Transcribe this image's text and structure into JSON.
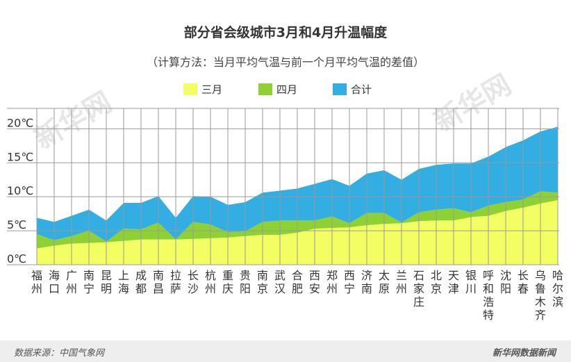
{
  "chart_data": {
    "type": "area",
    "title": "部分省会级城市3月和4月升温幅度",
    "subtitle": "（计算方法：当月平均气温与前一个月平均气温的差值）",
    "categories": [
      "福州",
      "海口",
      "广州",
      "南宁",
      "昆明",
      "上海",
      "成都",
      "南昌",
      "拉萨",
      "长沙",
      "杭州",
      "重庆",
      "贵阳",
      "南京",
      "武汉",
      "合肥",
      "西安",
      "郑州",
      "西宁",
      "济南",
      "太原",
      "兰州",
      "石家庄",
      "北京",
      "天津",
      "银川",
      "呼和浩特",
      "沈阳",
      "长春",
      "乌鲁木齐",
      "哈尔滨"
    ],
    "series": [
      {
        "name": "三月",
        "color": "#f2fe61",
        "values": [
          2.4,
          2.8,
          3.1,
          3.2,
          3.3,
          3.5,
          3.7,
          3.7,
          3.7,
          3.8,
          3.9,
          4.0,
          4.2,
          4.4,
          4.4,
          4.7,
          5.3,
          5.4,
          5.5,
          5.8,
          6.0,
          6.1,
          6.4,
          6.5,
          6.5,
          7.0,
          7.2,
          7.9,
          8.4,
          9.0,
          9.5
        ]
      },
      {
        "name": "四月",
        "color": "#8fd135",
        "values": [
          2.1,
          0.8,
          1.1,
          1.8,
          0.1,
          1.8,
          1.5,
          2.5,
          0.0,
          2.5,
          2.0,
          0.8,
          0.7,
          1.9,
          2.1,
          1.8,
          1.2,
          1.7,
          0.6,
          1.8,
          1.6,
          0.1,
          1.3,
          1.6,
          1.8,
          0.7,
          1.5,
          1.3,
          1.2,
          1.8,
          1.1
        ]
      },
      {
        "name": "合计",
        "color": "#33aee2",
        "values": [
          6.9,
          6.3,
          7.2,
          8.1,
          6.5,
          9.1,
          9.1,
          10.1,
          6.9,
          10.1,
          10.0,
          8.8,
          9.2,
          10.6,
          10.9,
          11.2,
          11.9,
          12.6,
          11.6,
          13.4,
          13.9,
          12.5,
          14.1,
          14.7,
          14.9,
          14.9,
          15.9,
          17.3,
          18.3,
          19.6,
          20.3
        ]
      }
    ],
    "ylim": [
      0,
      23
    ],
    "yticks": [
      "0℃",
      "5℃",
      "10℃",
      "15℃",
      "20℃"
    ],
    "ytick_values": [
      0,
      5,
      10,
      15,
      20
    ],
    "xlabel": "",
    "ylabel": "",
    "grid": true
  },
  "legend": [
    {
      "label": "三月",
      "color": "#f2fe61"
    },
    {
      "label": "四月",
      "color": "#8fd135"
    },
    {
      "label": "合计",
      "color": "#33aee2"
    }
  ],
  "footer": {
    "source": "数据来源：中国气象网",
    "credit": "新华网数据新闻"
  }
}
